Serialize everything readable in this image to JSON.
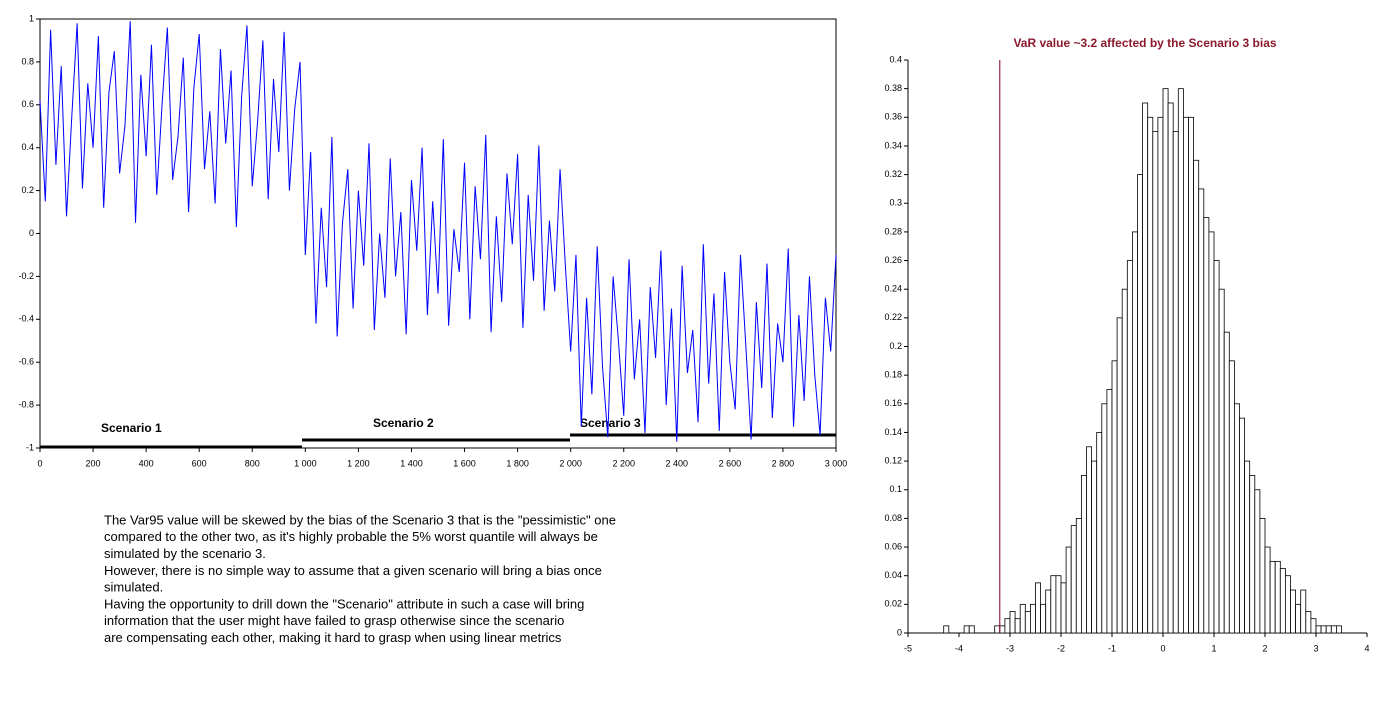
{
  "chart_data": [
    {
      "type": "line",
      "color": "#0000ff",
      "x": [
        0,
        20,
        40,
        60,
        80,
        100,
        120,
        140,
        160,
        180,
        200,
        220,
        240,
        260,
        280,
        300,
        320,
        340,
        360,
        380,
        400,
        420,
        440,
        460,
        480,
        500,
        520,
        540,
        560,
        580,
        600,
        620,
        640,
        660,
        680,
        700,
        720,
        740,
        760,
        780,
        800,
        820,
        840,
        860,
        880,
        900,
        920,
        940,
        960,
        980,
        1000,
        1020,
        1040,
        1060,
        1080,
        1100,
        1120,
        1140,
        1160,
        1180,
        1200,
        1220,
        1240,
        1260,
        1280,
        1300,
        1320,
        1340,
        1360,
        1380,
        1400,
        1420,
        1440,
        1460,
        1480,
        1500,
        1520,
        1540,
        1560,
        1580,
        1600,
        1620,
        1640,
        1660,
        1680,
        1700,
        1720,
        1740,
        1760,
        1780,
        1800,
        1820,
        1840,
        1860,
        1880,
        1900,
        1920,
        1940,
        1960,
        1980,
        2000,
        2020,
        2040,
        2060,
        2080,
        2100,
        2120,
        2140,
        2160,
        2180,
        2200,
        2220,
        2240,
        2260,
        2280,
        2300,
        2320,
        2340,
        2360,
        2380,
        2400,
        2420,
        2440,
        2460,
        2480,
        2500,
        2520,
        2540,
        2560,
        2580,
        2600,
        2620,
        2640,
        2660,
        2680,
        2700,
        2720,
        2740,
        2760,
        2780,
        2800,
        2820,
        2840,
        2860,
        2880,
        2900,
        2920,
        2940,
        2960,
        2980,
        3000
      ],
      "values": [
        0.62,
        0.15,
        0.95,
        0.32,
        0.78,
        0.08,
        0.55,
        0.98,
        0.21,
        0.7,
        0.4,
        0.92,
        0.12,
        0.66,
        0.85,
        0.28,
        0.5,
        0.99,
        0.05,
        0.74,
        0.36,
        0.88,
        0.18,
        0.6,
        0.96,
        0.25,
        0.45,
        0.82,
        0.1,
        0.68,
        0.93,
        0.3,
        0.57,
        0.14,
        0.86,
        0.42,
        0.76,
        0.03,
        0.64,
        0.97,
        0.22,
        0.52,
        0.9,
        0.16,
        0.72,
        0.38,
        0.94,
        0.2,
        0.58,
        0.8,
        -0.1,
        0.38,
        -0.42,
        0.12,
        -0.25,
        0.45,
        -0.48,
        0.05,
        0.3,
        -0.35,
        0.2,
        -0.15,
        0.42,
        -0.45,
        0.0,
        -0.3,
        0.35,
        -0.2,
        0.1,
        -0.47,
        0.25,
        -0.08,
        0.4,
        -0.38,
        0.15,
        -0.28,
        0.44,
        -0.43,
        0.02,
        -0.18,
        0.33,
        -0.4,
        0.22,
        -0.12,
        0.46,
        -0.46,
        0.08,
        -0.32,
        0.28,
        -0.05,
        0.37,
        -0.44,
        0.18,
        -0.22,
        0.41,
        -0.36,
        0.06,
        -0.27,
        0.3,
        -0.15,
        -0.55,
        -0.1,
        -0.9,
        -0.3,
        -0.75,
        -0.06,
        -0.62,
        -0.95,
        -0.2,
        -0.5,
        -0.85,
        -0.12,
        -0.68,
        -0.4,
        -0.93,
        -0.25,
        -0.58,
        -0.08,
        -0.8,
        -0.35,
        -0.97,
        -0.15,
        -0.65,
        -0.45,
        -0.88,
        -0.05,
        -0.7,
        -0.28,
        -0.92,
        -0.18,
        -0.6,
        -0.82,
        -0.1,
        -0.52,
        -0.96,
        -0.32,
        -0.72,
        -0.14,
        -0.86,
        -0.42,
        -0.6,
        -0.07,
        -0.9,
        -0.38,
        -0.78,
        -0.2,
        -0.66,
        -0.94,
        -0.3,
        -0.55,
        -0.1
      ],
      "xlim": [
        0,
        3000
      ],
      "xticks": [
        0,
        200,
        400,
        600,
        800,
        {
          "value": 1000,
          "label": "1 000"
        },
        {
          "value": 1200,
          "label": "1 200"
        },
        {
          "value": 1400,
          "label": "1 400"
        },
        {
          "value": 1600,
          "label": "1 600"
        },
        {
          "value": 1800,
          "label": "1 800"
        },
        {
          "value": 2000,
          "label": "2 000"
        },
        {
          "value": 2200,
          "label": "2 200"
        },
        {
          "value": 2400,
          "label": "2 400"
        },
        {
          "value": 2600,
          "label": "2 600"
        },
        {
          "value": 2800,
          "label": "2 800"
        },
        {
          "value": 3000,
          "label": "3 000"
        }
      ],
      "ylim": [
        -1,
        1
      ],
      "yticks": [
        -1,
        -0.8,
        -0.6,
        -0.4,
        -0.2,
        0,
        0.2,
        0.4,
        0.6,
        0.8,
        1
      ],
      "annotations": [
        "Scenario 1",
        "Scenario 2",
        "Scenario 3"
      ]
    },
    {
      "type": "histogram",
      "title": "VaR value ~3.2 affected by the Scenario 3 bias",
      "bins": [
        -4.3,
        -4.2,
        -4.1,
        -4.0,
        -3.9,
        -3.8,
        -3.7,
        -3.6,
        -3.5,
        -3.4,
        -3.3,
        -3.2,
        -3.1,
        -3.0,
        -2.9,
        -2.8,
        -2.7,
        -2.6,
        -2.5,
        -2.4,
        -2.3,
        -2.2,
        -2.1,
        -2.0,
        -1.9,
        -1.8,
        -1.7,
        -1.6,
        -1.5,
        -1.4,
        -1.3,
        -1.2,
        -1.1,
        -1.0,
        -0.9,
        -0.8,
        -0.7,
        -0.6,
        -0.5,
        -0.4,
        -0.3,
        -0.2,
        -0.1,
        0.0,
        0.1,
        0.2,
        0.3,
        0.4,
        0.5,
        0.6,
        0.7,
        0.8,
        0.9,
        1.0,
        1.1,
        1.2,
        1.3,
        1.4,
        1.5,
        1.6,
        1.7,
        1.8,
        1.9,
        2.0,
        2.1,
        2.2,
        2.3,
        2.4,
        2.5,
        2.6,
        2.7,
        2.8,
        2.9,
        3.0,
        3.1,
        3.2,
        3.3,
        3.4,
        3.5
      ],
      "values": [
        0.005,
        0,
        0,
        0,
        0.005,
        0.005,
        0,
        0,
        0,
        0,
        0.005,
        0.005,
        0.01,
        0.015,
        0.01,
        0.02,
        0.015,
        0.02,
        0.035,
        0.02,
        0.03,
        0.04,
        0.04,
        0.035,
        0.06,
        0.075,
        0.08,
        0.11,
        0.13,
        0.12,
        0.14,
        0.16,
        0.17,
        0.19,
        0.22,
        0.24,
        0.26,
        0.28,
        0.32,
        0.37,
        0.36,
        0.35,
        0.36,
        0.38,
        0.37,
        0.35,
        0.38,
        0.36,
        0.36,
        0.33,
        0.31,
        0.29,
        0.28,
        0.26,
        0.24,
        0.21,
        0.19,
        0.16,
        0.15,
        0.12,
        0.11,
        0.1,
        0.08,
        0.06,
        0.05,
        0.05,
        0.045,
        0.04,
        0.03,
        0.02,
        0.03,
        0.015,
        0.01,
        0.005,
        0.005,
        0.005,
        0.005,
        0.005
      ],
      "vline": -3.2,
      "vline_color": "#800020",
      "title_color": "#8b1a2b",
      "xlim": [
        -5,
        4
      ],
      "xticks": [
        -5,
        -4,
        -3,
        -2,
        -1,
        0,
        1,
        2,
        3,
        4
      ],
      "ylim": [
        0,
        0.4
      ],
      "yticks": [
        0,
        0.02,
        0.04,
        0.06,
        0.08,
        0.1,
        0.12,
        0.14,
        0.16,
        0.18,
        0.2,
        0.22,
        0.24,
        0.26,
        0.28,
        0.3,
        0.32,
        0.34,
        0.36,
        0.38,
        0.4
      ]
    }
  ],
  "notes": [
    "The Var95 value will be skewed by the bias of the Scenario 3 that is the \"pessimistic\" one",
    "compared to the other two, as it's highly probable the 5% worst quantile will always be",
    "simulated by the scenario 3.",
    "However, there is no simple way to assume that a given scenario will bring a bias once",
    "simulated.",
    "Having the opportunity to drill down the \"Scenario\" attribute in such a case will bring",
    "information that the user might have failed to grasp otherwise since the scenario",
    "are compensating each other, making it hard to grasp when using linear metrics"
  ]
}
